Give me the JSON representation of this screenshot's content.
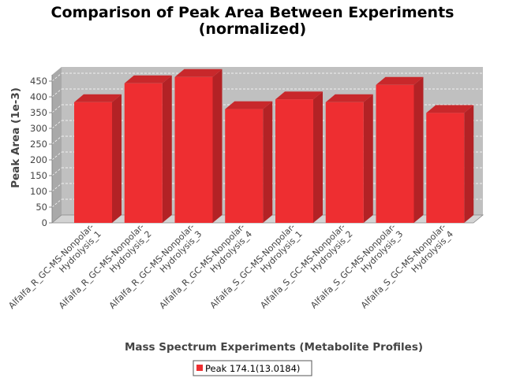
{
  "chart_data": {
    "type": "bar",
    "title": "Comparison of Peak Area Between Experiments",
    "subtitle": "(normalized)",
    "xlabel": "Mass Spectrum Experiments (Metabolite Profiles)",
    "ylabel": "Peak Area (1e-3)",
    "ylim": [
      0,
      470
    ],
    "yticks": [
      0,
      50,
      100,
      150,
      200,
      250,
      300,
      350,
      400,
      450
    ],
    "grid": true,
    "legend_position": "bottom",
    "categories": [
      [
        "Alfalfa_R_GC-MS-Nonpolar-",
        "Hydrolysis_1"
      ],
      [
        "Alfalfa_R_GC-MS-Nonpolar-",
        "Hydrolysis_2"
      ],
      [
        "Alfalfa_R_GC-MS-Nonpolar-",
        "Hydrolysis_3"
      ],
      [
        "Alfalfa_R_GC-MS-Nonpolar-",
        "Hydrolysis_4"
      ],
      [
        "Alfalfa_S_GC-MS-Nonpolar-",
        "Hydrolysis_1"
      ],
      [
        "Alfalfa_S_GC-MS-Nonpolar-",
        "Hydrolysis_2"
      ],
      [
        "Alfalfa_S_GC-MS-Nonpolar-",
        "Hydrolysis_3"
      ],
      [
        "Alfalfa_S_GC-MS-Nonpolar-",
        "Hydrolysis_4"
      ]
    ],
    "series": [
      {
        "name": "Peak 174.1(13.0184)",
        "color": "#ee2e31",
        "values": [
          383,
          443,
          463,
          361,
          392,
          383,
          438,
          349
        ]
      }
    ]
  },
  "colors": {
    "plot_background": "#c0c0c0",
    "bar_front": "#ee2e31",
    "bar_side": "#b32225",
    "bar_top": "#c8282b",
    "gridline": "#ffffff",
    "text": "#444444"
  }
}
